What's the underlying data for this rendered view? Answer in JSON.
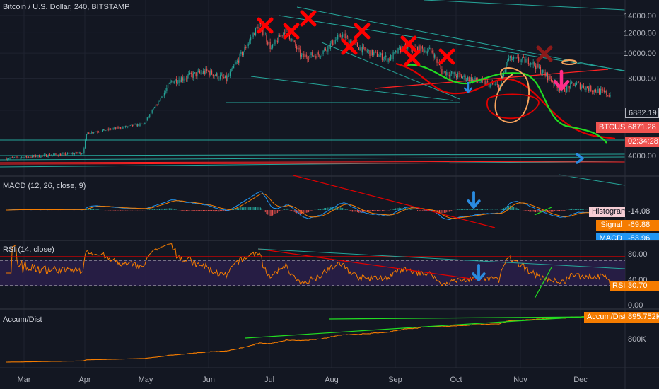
{
  "chart_data": {
    "type": "line",
    "title": "Bitcoin / U.S. Dollar, 240, BITSTAMP",
    "symbol": "BTCUSD",
    "x_ticks": [
      "Mar",
      "Apr",
      "May",
      "Jun",
      "Jul",
      "Aug",
      "Sep",
      "Oct",
      "Nov",
      "Dec"
    ],
    "price_ticks": [
      "14000.00",
      "12000.00",
      "10000.00",
      "8000.00",
      "4000.00"
    ],
    "price_scale": "log",
    "price_range": [
      3600,
      15500
    ],
    "price_series": {
      "name": "BTCUSD",
      "x": [
        "2019-02-20",
        "2019-03-31",
        "2019-04-02",
        "2019-04-30",
        "2019-05-14",
        "2019-05-31",
        "2019-06-10",
        "2019-06-26",
        "2019-07-02",
        "2019-07-09",
        "2019-07-17",
        "2019-07-26",
        "2019-08-06",
        "2019-08-16",
        "2019-08-29",
        "2019-09-05",
        "2019-09-19",
        "2019-09-24",
        "2019-10-06",
        "2019-10-22",
        "2019-10-26",
        "2019-11-06",
        "2019-11-22",
        "2019-11-28",
        "2019-12-16"
      ],
      "close": [
        3900,
        4100,
        4900,
        5300,
        7800,
        8500,
        7900,
        13000,
        10400,
        12400,
        9700,
        9900,
        11800,
        10300,
        9500,
        10600,
        10200,
        8500,
        8000,
        7400,
        9500,
        9300,
        7200,
        7600,
        6882.19
      ]
    },
    "price_labels": {
      "last": "6882.19",
      "symbol_tag": "BTCUSD",
      "symbol_value": "6871.28",
      "countdown": "02:34:28",
      "tag_colors": {
        "last": "#131722",
        "symbol": "#ef5350",
        "countdown": "#ef5350"
      }
    },
    "indicators": [
      {
        "name": "MACD",
        "title": "MACD (12, 26, close, 9)",
        "legend": [
          {
            "label": "Histogram",
            "value": "-14.08",
            "color": "#f5cdd4"
          },
          {
            "label": "Signal",
            "value": "-69.88",
            "color": "#f57c00"
          },
          {
            "label": "MACD",
            "value": "-83.96",
            "color": "#2196f3"
          }
        ]
      },
      {
        "name": "RSI",
        "title": "RSI (14, close)",
        "ticks": [
          "80.00",
          "40.00",
          "0.00"
        ],
        "range": [
          0,
          100
        ],
        "band": [
          30,
          70
        ],
        "legend": [
          {
            "label": "RSI",
            "value": "30.70",
            "color": "#f57c00"
          }
        ]
      },
      {
        "name": "Accum/Dist",
        "title": "Accum/Dist",
        "ticks": [
          "800K"
        ],
        "legend": [
          {
            "label": "Accum/Dist",
            "value": "895.752K",
            "color": "#f57c00"
          }
        ]
      }
    ],
    "colors": {
      "background": "#131722",
      "grid": "#1f2330",
      "candle_up": "#26a69a",
      "candle_down": "#ef5350",
      "indicator_line": "#f57c00",
      "macd_line": "#2196f3",
      "annotation_red": "#ff0000",
      "annotation_green": "#22dd22",
      "annotation_orange": "#f7a35c",
      "annotation_pink": "#ff2d8a",
      "annotation_blue": "#2a8be0",
      "trendline_teal": "#26a69a"
    },
    "annotations": {
      "x_marks": 9,
      "arrow_icons": [
        "arrow-down-icon",
        "arrow-down-icon",
        "arrow-down-icon",
        "arrow-right-icon"
      ]
    }
  }
}
